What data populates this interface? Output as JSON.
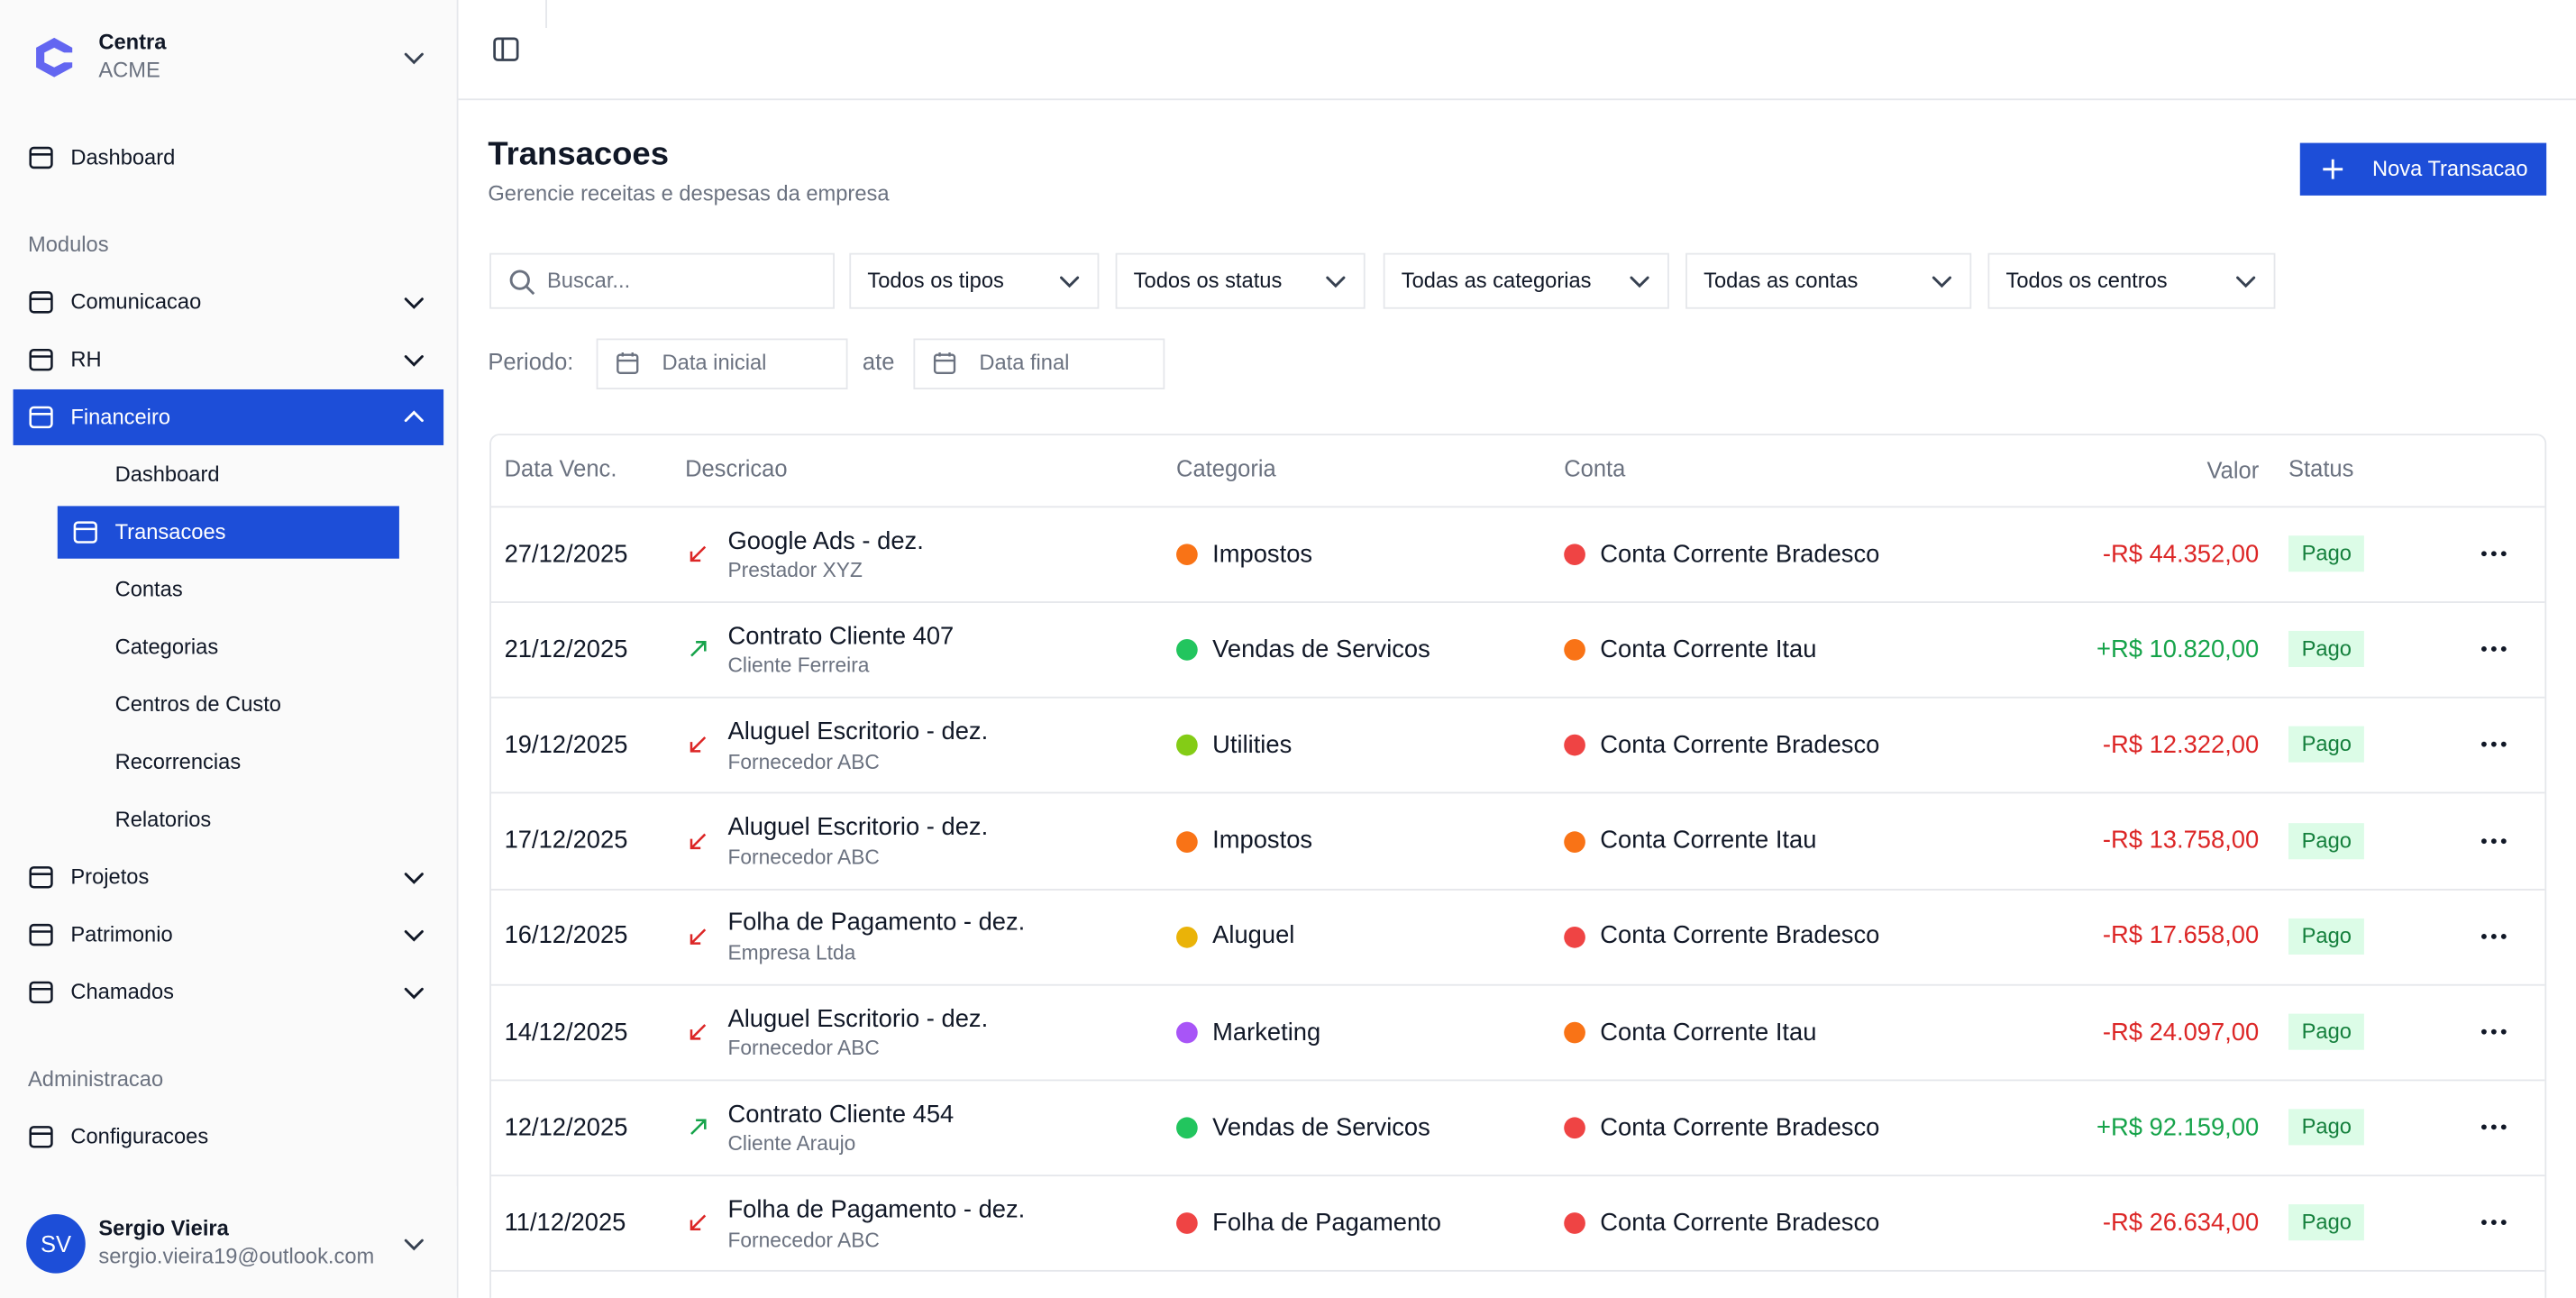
{
  "sidebar": {
    "brand": {
      "name": "Centra",
      "org": "ACME"
    },
    "top": [
      {
        "label": "Dashboard"
      }
    ],
    "sections": [
      {
        "title": "Modulos",
        "items": [
          {
            "label": "Comunicacao",
            "chevron": "down"
          },
          {
            "label": "RH",
            "chevron": "down"
          },
          {
            "label": "Financeiro",
            "chevron": "up",
            "active": true,
            "children": [
              {
                "label": "Dashboard"
              },
              {
                "label": "Transacoes",
                "active": true
              },
              {
                "label": "Contas"
              },
              {
                "label": "Categorias"
              },
              {
                "label": "Centros de Custo"
              },
              {
                "label": "Recorrencias"
              },
              {
                "label": "Relatorios"
              }
            ]
          },
          {
            "label": "Projetos",
            "chevron": "down"
          },
          {
            "label": "Patrimonio",
            "chevron": "down"
          },
          {
            "label": "Chamados",
            "chevron": "down"
          }
        ]
      },
      {
        "title": "Administracao",
        "items": [
          {
            "label": "Configuracoes"
          }
        ]
      }
    ],
    "user": {
      "initials": "SV",
      "name": "Sergio Vieira",
      "email": "sergio.vieira19@outlook.com"
    }
  },
  "header": {
    "title": "Transacoes",
    "subtitle": "Gerencie receitas e despesas da empresa",
    "button": "Nova Transacao"
  },
  "filters": {
    "search": "Buscar...",
    "selects": [
      "Todos os tipos",
      "Todos os status",
      "Todas as categorias",
      "Todas as contas",
      "Todos os centros"
    ],
    "period_label": "Periodo:",
    "start": "Data inicial",
    "between": "ate",
    "end": "Data final"
  },
  "table": {
    "columns": [
      "Data Venc.",
      "Descricao",
      "Categoria",
      "Conta",
      "Valor",
      "Status"
    ],
    "rows": [
      {
        "date": "27/12/2025",
        "description": "Google Ads - dez.",
        "party": "Prestador XYZ",
        "category": "Impostos",
        "category_color": "#f97316",
        "account": "Conta Corrente Bradesco",
        "account_color": "#ef4444",
        "value": "-R$ 44.352,00",
        "value_color": "#dc2626",
        "status": "Pago"
      },
      {
        "date": "21/12/2025",
        "description": "Contrato Cliente 407",
        "party": "Cliente Ferreira",
        "category": "Vendas de Servicos",
        "category_color": "#22c55e",
        "account": "Conta Corrente Itau",
        "account_color": "#f97316",
        "value": "+R$ 10.820,00",
        "value_color": "#16a34a",
        "status": "Pago"
      },
      {
        "date": "19/12/2025",
        "description": "Aluguel Escritorio - dez.",
        "party": "Fornecedor ABC",
        "category": "Utilities",
        "category_color": "#84cc16",
        "account": "Conta Corrente Bradesco",
        "account_color": "#ef4444",
        "value": "-R$ 12.322,00",
        "value_color": "#dc2626",
        "status": "Pago"
      },
      {
        "date": "17/12/2025",
        "description": "Aluguel Escritorio - dez.",
        "party": "Fornecedor ABC",
        "category": "Impostos",
        "category_color": "#f97316",
        "account": "Conta Corrente Itau",
        "account_color": "#f97316",
        "value": "-R$ 13.758,00",
        "value_color": "#dc2626",
        "status": "Pago"
      },
      {
        "date": "16/12/2025",
        "description": "Folha de Pagamento - dez.",
        "party": "Empresa Ltda",
        "category": "Aluguel",
        "category_color": "#eab308",
        "account": "Conta Corrente Bradesco",
        "account_color": "#ef4444",
        "value": "-R$ 17.658,00",
        "value_color": "#dc2626",
        "status": "Pago"
      },
      {
        "date": "14/12/2025",
        "description": "Aluguel Escritorio - dez.",
        "party": "Fornecedor ABC",
        "category": "Marketing",
        "category_color": "#a855f7",
        "account": "Conta Corrente Itau",
        "account_color": "#f97316",
        "value": "-R$ 24.097,00",
        "value_color": "#dc2626",
        "status": "Pago"
      },
      {
        "date": "12/12/2025",
        "description": "Contrato Cliente 454",
        "party": "Cliente Araujo",
        "category": "Vendas de Servicos",
        "category_color": "#22c55e",
        "account": "Conta Corrente Bradesco",
        "account_color": "#ef4444",
        "value": "+R$ 92.159,00",
        "value_color": "#16a34a",
        "status": "Pago"
      },
      {
        "date": "11/12/2025",
        "description": "Folha de Pagamento - dez.",
        "party": "Fornecedor ABC",
        "category": "Folha de Pagamento",
        "category_color": "#ef4444",
        "account": "Conta Corrente Bradesco",
        "account_color": "#ef4444",
        "value": "-R$ 26.634,00",
        "value_color": "#dc2626",
        "status": "Pago"
      }
    ]
  }
}
